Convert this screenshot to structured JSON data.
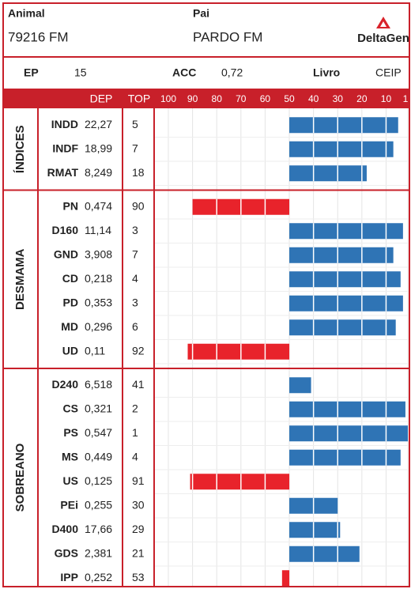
{
  "header": {
    "animal_label": "Animal",
    "animal": "79216 FM",
    "sire_label": "Pai",
    "sire": "PARDO FM",
    "brand": "DeltaGen"
  },
  "info": {
    "ep_label": "EP",
    "ep": "15",
    "acc_label": "ACC",
    "acc": "0,72",
    "book_label": "Livro",
    "book": "CEIP"
  },
  "columns": {
    "dep": "DEP",
    "top": "TOP"
  },
  "xlim": [
    100,
    1
  ],
  "xticks": [
    100,
    90,
    80,
    70,
    60,
    50,
    40,
    30,
    20,
    10,
    1
  ],
  "baseline": 50,
  "colors": {
    "below": "#2f74b5",
    "above": "#e8232b",
    "frame": "#c8202a"
  },
  "groups": [
    {
      "name": "ÍNDICES",
      "rows": [
        {
          "trait": "INDD",
          "dep": "22,27",
          "top": 5
        },
        {
          "trait": "INDF",
          "dep": "18,99",
          "top": 7
        },
        {
          "trait": "RMAT",
          "dep": "8,249",
          "top": 18
        }
      ]
    },
    {
      "name": "DESMAMA",
      "rows": [
        {
          "trait": "PN",
          "dep": "0,474",
          "top": 90
        },
        {
          "trait": "D160",
          "dep": "11,14",
          "top": 3
        },
        {
          "trait": "GND",
          "dep": "3,908",
          "top": 7
        },
        {
          "trait": "CD",
          "dep": "0,218",
          "top": 4
        },
        {
          "trait": "PD",
          "dep": "0,353",
          "top": 3
        },
        {
          "trait": "MD",
          "dep": "0,296",
          "top": 6
        },
        {
          "trait": "UD",
          "dep": "0,11",
          "top": 92
        }
      ]
    },
    {
      "name": "SOBREANO",
      "rows": [
        {
          "trait": "D240",
          "dep": "6,518",
          "top": 41
        },
        {
          "trait": "CS",
          "dep": "0,321",
          "top": 2
        },
        {
          "trait": "PS",
          "dep": "0,547",
          "top": 1
        },
        {
          "trait": "MS",
          "dep": "0,449",
          "top": 4
        },
        {
          "trait": "US",
          "dep": "0,125",
          "top": 91
        },
        {
          "trait": "PEi",
          "dep": "0,255",
          "top": 30
        },
        {
          "trait": "D400",
          "dep": "17,66",
          "top": 29
        },
        {
          "trait": "GDS",
          "dep": "2,381",
          "top": 21
        },
        {
          "trait": "IPP",
          "dep": "0,252",
          "top": 53
        }
      ]
    }
  ]
}
